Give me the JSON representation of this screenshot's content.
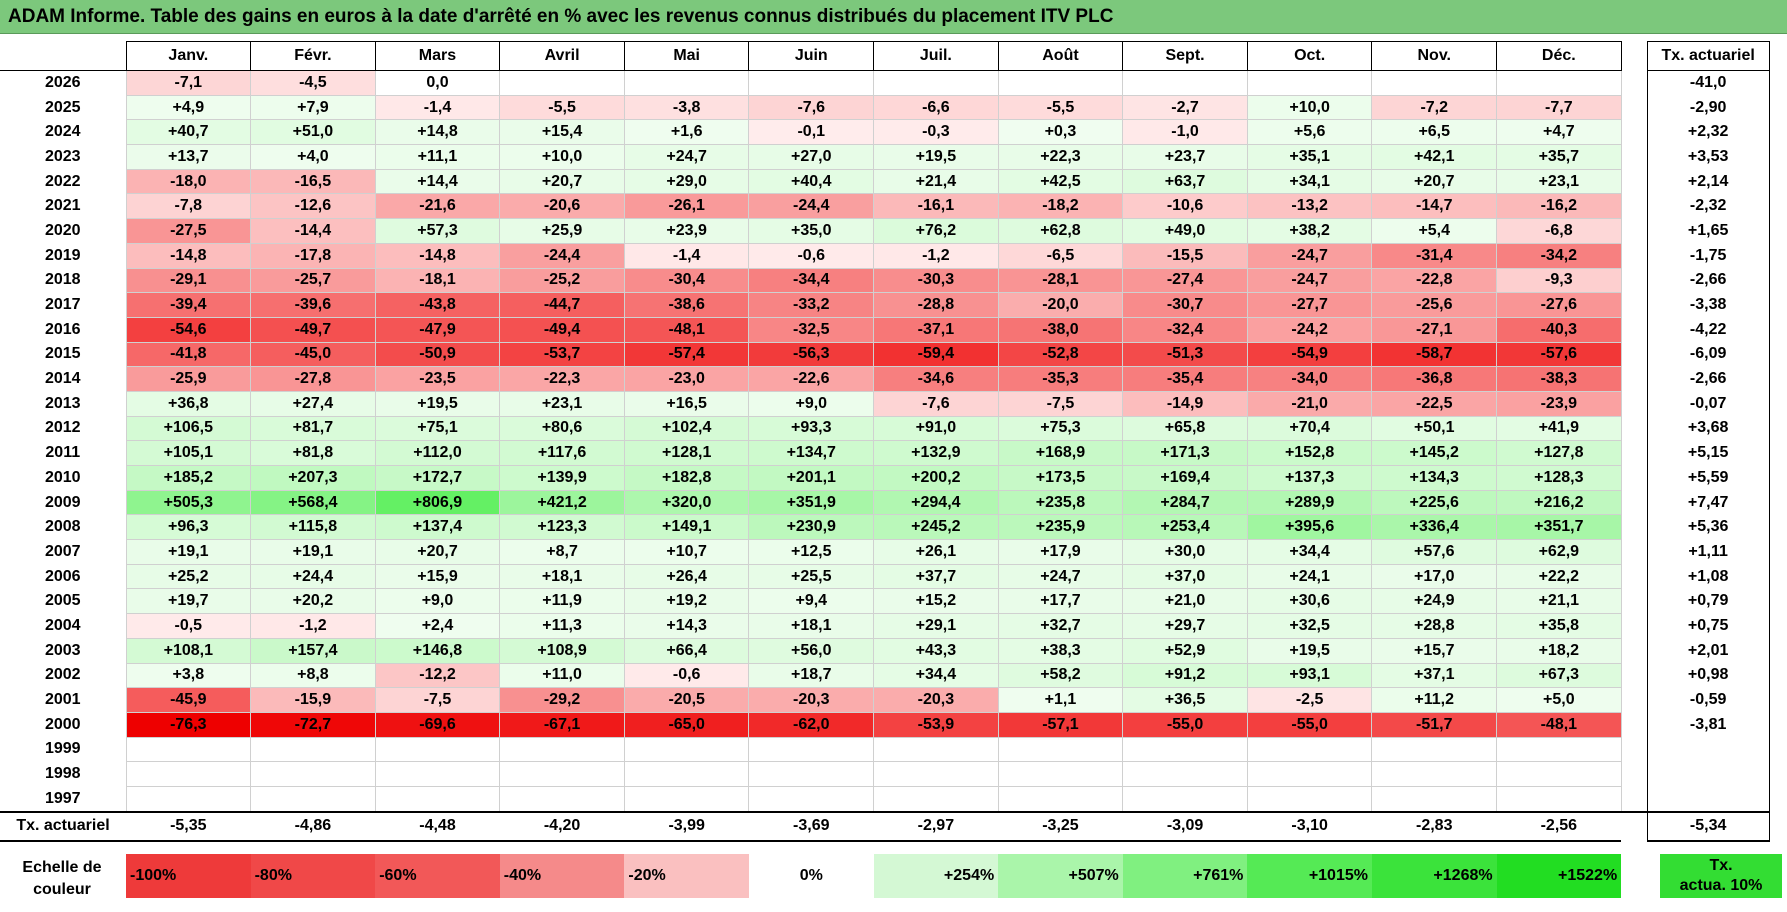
{
  "title": "ADAM Informe. Table des gains en euros à la date d'arrêté en % avec les revenus connus distribués du placement ITV PLC",
  "chart_data": {
    "type": "table",
    "columns": [
      "Janv.",
      "Févr.",
      "Mars",
      "Avril",
      "Mai",
      "Juin",
      "Juil.",
      "Août",
      "Sept.",
      "Oct.",
      "Nov.",
      "Déc."
    ],
    "tx_header": "Tx. actuariel",
    "rows": [
      {
        "year": "2026",
        "values": [
          "-7,1",
          "-4,5",
          "0,0",
          "",
          "",
          "",
          "",
          "",
          "",
          "",
          "",
          ""
        ],
        "tx": "-41,0"
      },
      {
        "year": "2025",
        "values": [
          "+4,9",
          "+7,9",
          "-1,4",
          "-5,5",
          "-3,8",
          "-7,6",
          "-6,6",
          "-5,5",
          "-2,7",
          "+10,0",
          "-7,2",
          "-7,7"
        ],
        "tx": "-2,90"
      },
      {
        "year": "2024",
        "values": [
          "+40,7",
          "+51,0",
          "+14,8",
          "+15,4",
          "+1,6",
          "-0,1",
          "-0,3",
          "+0,3",
          "-1,0",
          "+5,6",
          "+6,5",
          "+4,7"
        ],
        "tx": "+2,32"
      },
      {
        "year": "2023",
        "values": [
          "+13,7",
          "+4,0",
          "+11,1",
          "+10,0",
          "+24,7",
          "+27,0",
          "+19,5",
          "+22,3",
          "+23,7",
          "+35,1",
          "+42,1",
          "+35,7"
        ],
        "tx": "+3,53"
      },
      {
        "year": "2022",
        "values": [
          "-18,0",
          "-16,5",
          "+14,4",
          "+20,7",
          "+29,0",
          "+40,4",
          "+21,4",
          "+42,5",
          "+63,7",
          "+34,1",
          "+20,7",
          "+23,1"
        ],
        "tx": "+2,14"
      },
      {
        "year": "2021",
        "values": [
          "-7,8",
          "-12,6",
          "-21,6",
          "-20,6",
          "-26,1",
          "-24,4",
          "-16,1",
          "-18,2",
          "-10,6",
          "-13,2",
          "-14,7",
          "-16,2"
        ],
        "tx": "-2,32"
      },
      {
        "year": "2020",
        "values": [
          "-27,5",
          "-14,4",
          "+57,3",
          "+25,9",
          "+23,9",
          "+35,0",
          "+76,2",
          "+62,8",
          "+49,0",
          "+38,2",
          "+5,4",
          "-6,8"
        ],
        "tx": "+1,65"
      },
      {
        "year": "2019",
        "values": [
          "-14,8",
          "-17,8",
          "-14,8",
          "-24,4",
          "-1,4",
          "-0,6",
          "-1,2",
          "-6,5",
          "-15,5",
          "-24,7",
          "-31,4",
          "-34,2"
        ],
        "tx": "-1,75"
      },
      {
        "year": "2018",
        "values": [
          "-29,1",
          "-25,7",
          "-18,1",
          "-25,2",
          "-30,4",
          "-34,4",
          "-30,3",
          "-28,1",
          "-27,4",
          "-24,7",
          "-22,8",
          "-9,3"
        ],
        "tx": "-2,66"
      },
      {
        "year": "2017",
        "values": [
          "-39,4",
          "-39,6",
          "-43,8",
          "-44,7",
          "-38,6",
          "-33,2",
          "-28,8",
          "-20,0",
          "-30,7",
          "-27,7",
          "-25,6",
          "-27,6"
        ],
        "tx": "-3,38"
      },
      {
        "year": "2016",
        "values": [
          "-54,6",
          "-49,7",
          "-47,9",
          "-49,4",
          "-48,1",
          "-32,5",
          "-37,1",
          "-38,0",
          "-32,4",
          "-24,2",
          "-27,1",
          "-40,3"
        ],
        "tx": "-4,22"
      },
      {
        "year": "2015",
        "values": [
          "-41,8",
          "-45,0",
          "-50,9",
          "-53,7",
          "-57,4",
          "-56,3",
          "-59,4",
          "-52,8",
          "-51,3",
          "-54,9",
          "-58,7",
          "-57,6"
        ],
        "tx": "-6,09"
      },
      {
        "year": "2014",
        "values": [
          "-25,9",
          "-27,8",
          "-23,5",
          "-22,3",
          "-23,0",
          "-22,6",
          "-34,6",
          "-35,3",
          "-35,4",
          "-34,0",
          "-36,8",
          "-38,3"
        ],
        "tx": "-2,66"
      },
      {
        "year": "2013",
        "values": [
          "+36,8",
          "+27,4",
          "+19,5",
          "+23,1",
          "+16,5",
          "+9,0",
          "-7,6",
          "-7,5",
          "-14,9",
          "-21,0",
          "-22,5",
          "-23,9"
        ],
        "tx": "-0,07"
      },
      {
        "year": "2012",
        "values": [
          "+106,5",
          "+81,7",
          "+75,1",
          "+80,6",
          "+102,4",
          "+93,3",
          "+91,0",
          "+75,3",
          "+65,8",
          "+70,4",
          "+50,1",
          "+41,9"
        ],
        "tx": "+3,68"
      },
      {
        "year": "2011",
        "values": [
          "+105,1",
          "+81,8",
          "+112,0",
          "+117,6",
          "+128,1",
          "+134,7",
          "+132,9",
          "+168,9",
          "+171,3",
          "+152,8",
          "+145,2",
          "+127,8"
        ],
        "tx": "+5,15"
      },
      {
        "year": "2010",
        "values": [
          "+185,2",
          "+207,3",
          "+172,7",
          "+139,9",
          "+182,8",
          "+201,1",
          "+200,2",
          "+173,5",
          "+169,4",
          "+137,3",
          "+134,3",
          "+128,3"
        ],
        "tx": "+5,59"
      },
      {
        "year": "2009",
        "values": [
          "+505,3",
          "+568,4",
          "+806,9",
          "+421,2",
          "+320,0",
          "+351,9",
          "+294,4",
          "+235,8",
          "+284,7",
          "+289,9",
          "+225,6",
          "+216,2"
        ],
        "tx": "+7,47"
      },
      {
        "year": "2008",
        "values": [
          "+96,3",
          "+115,8",
          "+137,4",
          "+123,3",
          "+149,1",
          "+230,9",
          "+245,2",
          "+235,9",
          "+253,4",
          "+395,6",
          "+336,4",
          "+351,7"
        ],
        "tx": "+5,36"
      },
      {
        "year": "2007",
        "values": [
          "+19,1",
          "+19,1",
          "+20,7",
          "+8,7",
          "+10,7",
          "+12,5",
          "+26,1",
          "+17,9",
          "+30,0",
          "+34,4",
          "+57,6",
          "+62,9"
        ],
        "tx": "+1,11"
      },
      {
        "year": "2006",
        "values": [
          "+25,2",
          "+24,4",
          "+15,9",
          "+18,1",
          "+26,4",
          "+25,5",
          "+37,7",
          "+24,7",
          "+37,0",
          "+24,1",
          "+17,0",
          "+22,2"
        ],
        "tx": "+1,08"
      },
      {
        "year": "2005",
        "values": [
          "+19,7",
          "+20,2",
          "+9,0",
          "+11,9",
          "+19,2",
          "+9,4",
          "+15,2",
          "+17,7",
          "+21,0",
          "+30,6",
          "+24,9",
          "+21,1"
        ],
        "tx": "+0,79"
      },
      {
        "year": "2004",
        "values": [
          "-0,5",
          "-1,2",
          "+2,4",
          "+11,3",
          "+14,3",
          "+18,1",
          "+29,1",
          "+32,7",
          "+29,7",
          "+32,5",
          "+28,8",
          "+35,8"
        ],
        "tx": "+0,75"
      },
      {
        "year": "2003",
        "values": [
          "+108,1",
          "+157,4",
          "+146,8",
          "+108,9",
          "+66,4",
          "+56,0",
          "+43,3",
          "+38,3",
          "+52,9",
          "+19,5",
          "+15,7",
          "+18,2"
        ],
        "tx": "+2,01"
      },
      {
        "year": "2002",
        "values": [
          "+3,8",
          "+8,8",
          "-12,2",
          "+11,0",
          "-0,6",
          "+18,7",
          "+34,4",
          "+58,2",
          "+91,2",
          "+93,1",
          "+37,1",
          "+67,3"
        ],
        "tx": "+0,98"
      },
      {
        "year": "2001",
        "values": [
          "-45,9",
          "-15,9",
          "-7,5",
          "-29,2",
          "-20,5",
          "-20,3",
          "-20,3",
          "+1,1",
          "+36,5",
          "-2,5",
          "+11,2",
          "+5,0"
        ],
        "tx": "-0,59"
      },
      {
        "year": "2000",
        "values": [
          "-76,3",
          "-72,7",
          "-69,6",
          "-67,1",
          "-65,0",
          "-62,0",
          "-53,9",
          "-57,1",
          "-55,0",
          "-55,0",
          "-51,7",
          "-48,1"
        ],
        "tx": "-3,81"
      },
      {
        "year": "1999",
        "values": [
          "",
          "",
          "",
          "",
          "",
          "",
          "",
          "",
          "",
          "",
          "",
          ""
        ],
        "tx": ""
      },
      {
        "year": "1998",
        "values": [
          "",
          "",
          "",
          "",
          "",
          "",
          "",
          "",
          "",
          "",
          "",
          ""
        ],
        "tx": ""
      },
      {
        "year": "1997",
        "values": [
          "",
          "",
          "",
          "",
          "",
          "",
          "",
          "",
          "",
          "",
          "",
          ""
        ],
        "tx": ""
      }
    ],
    "footer": {
      "label": "Tx. actuariel",
      "values": [
        "-5,35",
        "-4,86",
        "-4,48",
        "-4,20",
        "-3,99",
        "-3,69",
        "-2,97",
        "-3,25",
        "-3,09",
        "-3,10",
        "-2,83",
        "-2,56"
      ],
      "tx": "-5,34"
    },
    "scale": {
      "label_line1": "Echelle de",
      "label_line2": "couleur",
      "items": [
        {
          "label": "-100%",
          "color": "#ee3a3a"
        },
        {
          "label": "-80%",
          "color": "#f04848"
        },
        {
          "label": "-60%",
          "color": "#f25858"
        },
        {
          "label": "-40%",
          "color": "#f58a8a"
        },
        {
          "label": "-20%",
          "color": "#fac0c0"
        },
        {
          "label": "0%",
          "color": "#ffffff"
        },
        {
          "label": "+254%",
          "color": "#d4f8d4"
        },
        {
          "label": "+507%",
          "color": "#aaf5aa"
        },
        {
          "label": "+761%",
          "color": "#80f080"
        },
        {
          "label": "+1015%",
          "color": "#55ea55"
        },
        {
          "label": "+1268%",
          "color": "#3be33b"
        },
        {
          "label": "+1522%",
          "color": "#22dd22"
        }
      ],
      "tx_line1": "Tx.",
      "tx_line2": "actua. 10%",
      "tx_color": "#33dd33"
    }
  }
}
